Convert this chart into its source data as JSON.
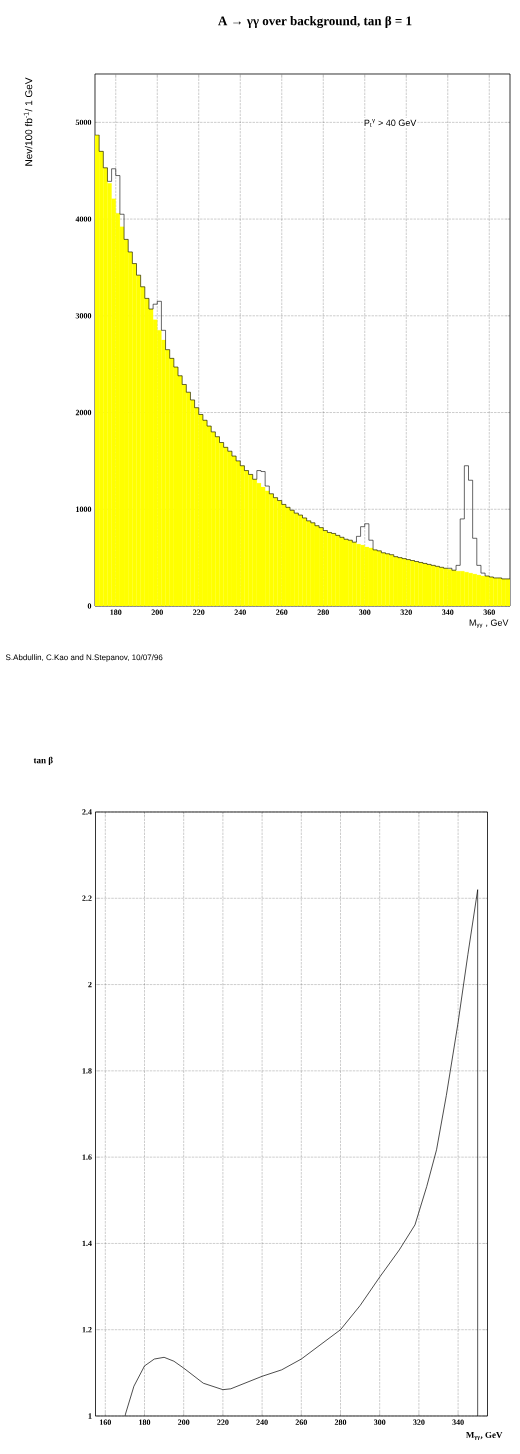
{
  "chart_data": [
    {
      "type": "histogram",
      "title": "A → γγ   over background,  tan β = 1",
      "xlabel": "M$_{γγ}$ ,  GeV",
      "ylabel": "Nev/100 fb$^{-1}$/ 1 GeV",
      "annotations": [
        "P$_{t}$$^{γ}$ > 40 GeV",
        "S.Abdullin, C.Kao and N.Stepanov, 10/07/96"
      ],
      "bins": [
        170,
        172,
        174,
        176,
        178,
        180,
        182,
        184,
        186,
        188,
        190,
        192,
        194,
        196,
        198,
        200,
        202,
        204,
        206,
        208,
        210,
        212,
        214,
        216,
        218,
        220,
        222,
        224,
        226,
        228,
        230,
        232,
        234,
        236,
        238,
        240,
        242,
        244,
        246,
        248,
        250,
        252,
        254,
        256,
        258,
        260,
        262,
        264,
        266,
        268,
        270,
        272,
        274,
        276,
        278,
        280,
        282,
        284,
        286,
        288,
        290,
        292,
        294,
        296,
        298,
        300,
        302,
        304,
        306,
        308,
        310,
        312,
        314,
        316,
        318,
        320,
        322,
        324,
        326,
        328,
        330,
        332,
        334,
        336,
        338,
        340,
        342,
        344,
        346,
        348,
        350,
        352,
        354,
        356,
        358,
        360,
        362,
        364,
        366,
        368,
        370
      ],
      "series": [
        {
          "color": "#ffff00",
          "values": [
            4870,
            4700,
            4530,
            4370,
            4210,
            4060,
            3920,
            3790,
            3660,
            3540,
            3420,
            3300,
            3180,
            3070,
            2960,
            2850,
            2750,
            2650,
            2560,
            2470,
            2380,
            2290,
            2210,
            2130,
            2050,
            1980,
            1920,
            1860,
            1800,
            1750,
            1690,
            1640,
            1600,
            1550,
            1500,
            1450,
            1400,
            1360,
            1310,
            1270,
            1230,
            1190,
            1160,
            1120,
            1090,
            1050,
            1020,
            990,
            960,
            940,
            910,
            880,
            860,
            830,
            810,
            780,
            760,
            750,
            730,
            710,
            690,
            680,
            660,
            640,
            630,
            610,
            600,
            580,
            570,
            550,
            540,
            530,
            510,
            500,
            490,
            480,
            470,
            460,
            450,
            440,
            430,
            420,
            410,
            400,
            390,
            380,
            370,
            360,
            360,
            350,
            340,
            330,
            320,
            310,
            310,
            300,
            290,
            290,
            280,
            280
          ]
        },
        {
          "color": "#000000",
          "values": [
            4870,
            4700,
            4530,
            4390,
            4520,
            4450,
            4050,
            3790,
            3660,
            3540,
            3420,
            3300,
            3180,
            3070,
            3120,
            3150,
            2850,
            2650,
            2560,
            2470,
            2380,
            2290,
            2210,
            2130,
            2050,
            1980,
            1920,
            1860,
            1800,
            1750,
            1690,
            1640,
            1600,
            1550,
            1500,
            1450,
            1400,
            1360,
            1310,
            1400,
            1390,
            1240,
            1160,
            1120,
            1090,
            1050,
            1020,
            990,
            960,
            940,
            910,
            880,
            860,
            830,
            810,
            780,
            760,
            750,
            730,
            710,
            690,
            680,
            660,
            720,
            820,
            850,
            680,
            580,
            570,
            550,
            540,
            530,
            510,
            500,
            490,
            480,
            470,
            460,
            450,
            440,
            430,
            420,
            410,
            400,
            390,
            390,
            370,
            420,
            900,
            1450,
            1300,
            700,
            420,
            340,
            310,
            300,
            290,
            290,
            280,
            280
          ]
        }
      ],
      "xlim": [
        170,
        370
      ],
      "ylim": [
        0,
        5500
      ],
      "xticks": [
        180,
        200,
        220,
        240,
        260,
        280,
        300,
        320,
        340,
        360
      ],
      "yticks": [
        0,
        1000,
        2000,
        3000,
        4000,
        5000
      ],
      "grid": true
    },
    {
      "type": "line",
      "xlabel": "M$_{γγ}$, GeV",
      "ylabel": "tan β",
      "x": [
        170,
        174.6,
        180,
        185,
        190,
        195,
        200,
        210,
        220,
        224,
        240,
        250,
        260,
        270,
        280,
        290,
        300,
        310,
        318,
        324,
        329,
        334,
        340,
        345,
        350,
        350
      ],
      "values": [
        1.0,
        1.069,
        1.116,
        1.132,
        1.136,
        1.127,
        1.111,
        1.076,
        1.061,
        1.063,
        1.092,
        1.107,
        1.132,
        1.166,
        1.2,
        1.256,
        1.322,
        1.385,
        1.443,
        1.532,
        1.617,
        1.743,
        1.912,
        2.07,
        2.22,
        1.0
      ],
      "color": "#000000",
      "xlim": [
        155,
        355
      ],
      "ylim": [
        1,
        2.4
      ],
      "xticks": [
        160,
        180,
        200,
        220,
        240,
        260,
        280,
        300,
        320,
        340
      ],
      "yticks": [
        1,
        1.2,
        1.4,
        1.6,
        1.8,
        2,
        2.2,
        2.4
      ],
      "grid": true
    }
  ]
}
